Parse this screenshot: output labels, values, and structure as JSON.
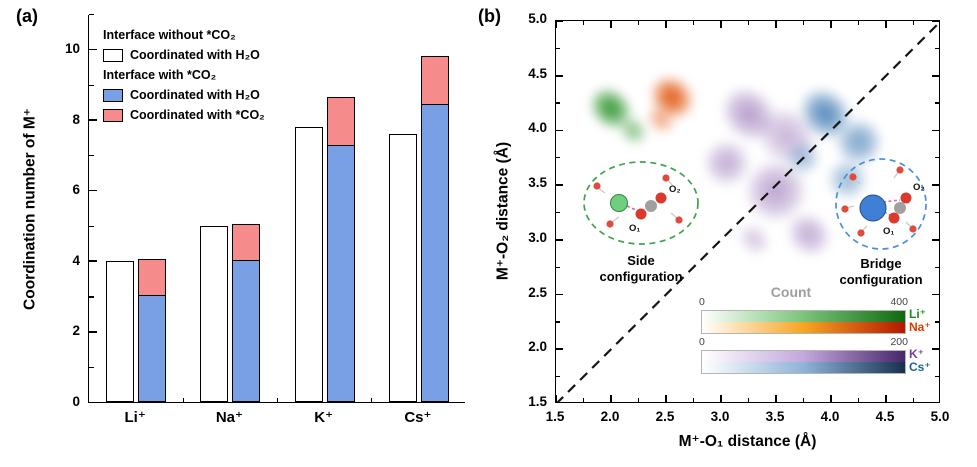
{
  "figure": {
    "panel_a_label": "(a)",
    "panel_b_label": "(b)"
  },
  "colors": {
    "bar_white": "#ffffff",
    "bar_blue": "#79a0e5",
    "bar_pink": "#f68b8b",
    "count_gray": "#9e9e9e",
    "side_ellipse_green": "#3fa34d",
    "bridge_circle_blue": "#4a90d9"
  },
  "chart_data": [
    {
      "type": "bar",
      "panel": "(a)",
      "ylabel": "Coordination number of M⁺",
      "categories": [
        "Li⁺",
        "Na⁺",
        "K⁺",
        "Cs⁺"
      ],
      "ylim": [
        0,
        11
      ],
      "yticks": [
        0,
        2,
        4,
        6,
        8,
        10
      ],
      "legend": {
        "group1_title": "Interface without *CO₂",
        "group1_item": "Coordinated with H₂O",
        "group2_title": "Interface with *CO₂",
        "group2_item1": "Coordinated with H₂O",
        "group2_item2": "Coordinated with *CO₂"
      },
      "series": [
        {
          "name": "Interface without *CO₂ - Coordinated with H₂O",
          "style": "white",
          "values": [
            4.0,
            5.0,
            7.8,
            7.6
          ]
        },
        {
          "name": "Interface with *CO₂ - Coordinated with H₂O",
          "style": "blue",
          "values": [
            3.05,
            4.05,
            7.3,
            8.45
          ]
        },
        {
          "name": "Interface with *CO₂ - Coordinated with *CO₂ (stacked on blue)",
          "style": "pink",
          "stacked_on": 1,
          "values": [
            1.0,
            1.0,
            1.35,
            1.35
          ]
        }
      ]
    },
    {
      "type": "heatmap",
      "panel": "(b)",
      "xlabel": "M⁺-O₁ distance (Å)",
      "ylabel": "M⁺-O₂ distance (Å)",
      "xlim": [
        1.5,
        5.0
      ],
      "ylim": [
        1.5,
        5.0
      ],
      "xticks": [
        "1.5",
        "2.0",
        "2.5",
        "3.0",
        "3.5",
        "4.0",
        "4.5",
        "5.0"
      ],
      "yticks": [
        "1.5",
        "2.0",
        "2.5",
        "3.0",
        "3.5",
        "4.0",
        "4.5",
        "5.0"
      ],
      "diagonal": "dashed y = x reference line",
      "series": [
        {
          "name": "Li⁺",
          "color": "#1f8c1f",
          "clusters": [
            {
              "x": 2.0,
              "y": 4.2,
              "rx": 0.3,
              "ry": 0.24,
              "a": 0.95
            },
            {
              "x": 2.2,
              "y": 4.0,
              "rx": 0.2,
              "ry": 0.16,
              "a": 0.55
            }
          ]
        },
        {
          "name": "Na⁺",
          "color": "#e04a00",
          "clusters": [
            {
              "x": 2.55,
              "y": 4.3,
              "rx": 0.3,
              "ry": 0.26,
              "a": 0.95
            },
            {
              "x": 2.45,
              "y": 4.1,
              "rx": 0.2,
              "ry": 0.16,
              "a": 0.5
            }
          ]
        },
        {
          "name": "K⁺",
          "color": "#8257a8",
          "clusters": [
            {
              "x": 3.25,
              "y": 4.15,
              "rx": 0.38,
              "ry": 0.32,
              "a": 0.6
            },
            {
              "x": 3.05,
              "y": 3.7,
              "rx": 0.3,
              "ry": 0.3,
              "a": 0.5
            },
            {
              "x": 3.5,
              "y": 3.45,
              "rx": 0.4,
              "ry": 0.4,
              "a": 0.55
            },
            {
              "x": 3.6,
              "y": 3.95,
              "rx": 0.4,
              "ry": 0.35,
              "a": 0.45
            },
            {
              "x": 3.8,
              "y": 3.05,
              "rx": 0.3,
              "ry": 0.26,
              "a": 0.5
            },
            {
              "x": 3.3,
              "y": 3.0,
              "rx": 0.22,
              "ry": 0.18,
              "a": 0.35
            }
          ]
        },
        {
          "name": "Cs⁺",
          "color": "#2f6fad",
          "clusters": [
            {
              "x": 3.95,
              "y": 4.15,
              "rx": 0.36,
              "ry": 0.3,
              "a": 0.85
            },
            {
              "x": 4.25,
              "y": 3.9,
              "rx": 0.3,
              "ry": 0.3,
              "a": 0.65
            },
            {
              "x": 4.15,
              "y": 3.55,
              "rx": 0.26,
              "ry": 0.26,
              "a": 0.5
            },
            {
              "x": 3.75,
              "y": 3.75,
              "rx": 0.22,
              "ry": 0.22,
              "a": 0.45
            }
          ]
        }
      ],
      "insets": [
        {
          "caption_line1": "Side",
          "caption_line2": "configuration",
          "o1_label": "O₁",
          "o2_label": "O₂"
        },
        {
          "caption_line1": "Bridge",
          "caption_line2": "configuration",
          "o1_label": "O₁",
          "o2_label": "O₂"
        }
      ],
      "colorbar_title": "Count",
      "colorbars": [
        {
          "min": "0",
          "max": "400",
          "rows": [
            {
              "ion": "Li⁺",
              "label_color": "#1a8c1a",
              "stops": [
                "#ffffff",
                "#7cc47c",
                "#0f6b0f"
              ]
            },
            {
              "ion": "Na⁺",
              "label_color": "#e03a00",
              "stops": [
                "#ffffff",
                "#f6a623",
                "#b51700"
              ]
            }
          ]
        },
        {
          "min": "0",
          "max": "200",
          "rows": [
            {
              "ion": "K⁺",
              "label_color": "#7040a0",
              "stops": [
                "#ffffff",
                "#c3a8dc",
                "#46276b"
              ]
            },
            {
              "ion": "Cs⁺",
              "label_color": "#2060a0",
              "stops": [
                "#ffffff",
                "#8fb3d9",
                "#16324f"
              ]
            }
          ]
        }
      ]
    }
  ]
}
